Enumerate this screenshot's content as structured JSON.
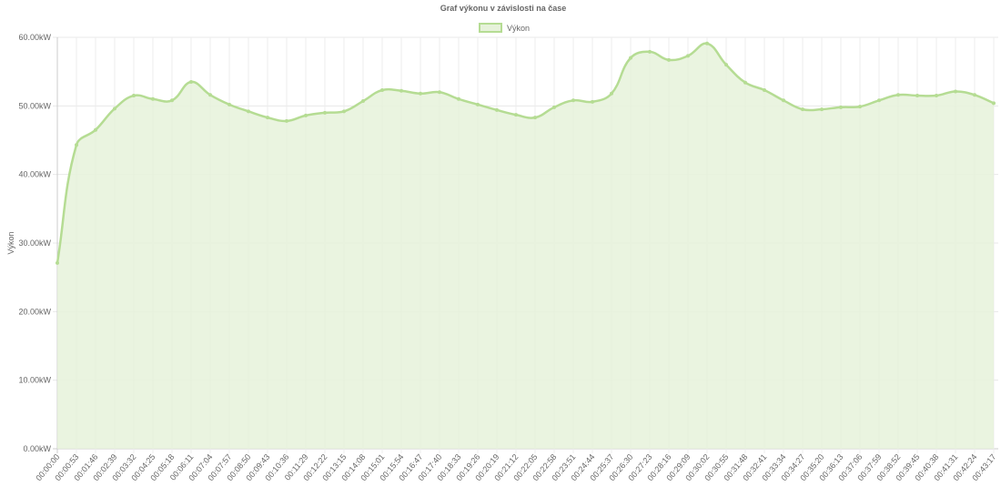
{
  "chart_data": {
    "type": "line",
    "title": "Graf výkonu v závislosti na čase",
    "y_label": "Výkon",
    "categories": [
      "00:00:00",
      "00:00:53",
      "00:01:46",
      "00:02:39",
      "00:03:32",
      "00:04:25",
      "00:05:18",
      "00:06:11",
      "00:07:04",
      "00:07:57",
      "00:08:50",
      "00:09:43",
      "00:10:36",
      "00:11:29",
      "00:12:22",
      "00:13:15",
      "00:14:08",
      "00:15:01",
      "00:15:54",
      "00:16:47",
      "00:17:40",
      "00:18:33",
      "00:19:26",
      "00:20:19",
      "00:21:12",
      "00:22:05",
      "00:22:58",
      "00:23:51",
      "00:24:44",
      "00:25:37",
      "00:26:30",
      "00:27:23",
      "00:28:16",
      "00:29:09",
      "00:30:02",
      "00:30:55",
      "00:31:48",
      "00:32:41",
      "00:33:34",
      "00:34:27",
      "00:35:20",
      "00:36:13",
      "00:37:06",
      "00:37:59",
      "00:38:52",
      "00:39:45",
      "00:40:38",
      "00:41:31",
      "00:42:24",
      "00:43:17"
    ],
    "series": [
      {
        "name": "Výkon",
        "color": "#b5dc93",
        "fill": "#e6f2da",
        "values": [
          27.1,
          44.3,
          46.5,
          49.6,
          51.5,
          51.0,
          50.8,
          53.5,
          51.6,
          50.2,
          49.2,
          48.3,
          47.8,
          48.6,
          49.0,
          49.2,
          50.7,
          52.3,
          52.2,
          51.8,
          52.0,
          51.0,
          50.2,
          49.4,
          48.7,
          48.3,
          49.8,
          50.8,
          50.6,
          51.8,
          57.0,
          57.9,
          56.7,
          57.3,
          59.1,
          56.0,
          53.4,
          52.3,
          50.8,
          49.5,
          49.5,
          49.8,
          49.9,
          50.8,
          51.6,
          51.5,
          51.5,
          52.1,
          51.6,
          50.4
        ]
      }
    ],
    "ylim": [
      0,
      60
    ],
    "yticks": [
      {
        "value": 0,
        "label": "0.00kW"
      },
      {
        "value": 10,
        "label": "10.00kW"
      },
      {
        "value": 20,
        "label": "20.00kW"
      },
      {
        "value": 30,
        "label": "30.00kW"
      },
      {
        "value": 40,
        "label": "40.00kW"
      },
      {
        "value": 50,
        "label": "50.00kW"
      },
      {
        "value": 60,
        "label": "60.00kW"
      }
    ],
    "grid": true,
    "legend": "top"
  }
}
